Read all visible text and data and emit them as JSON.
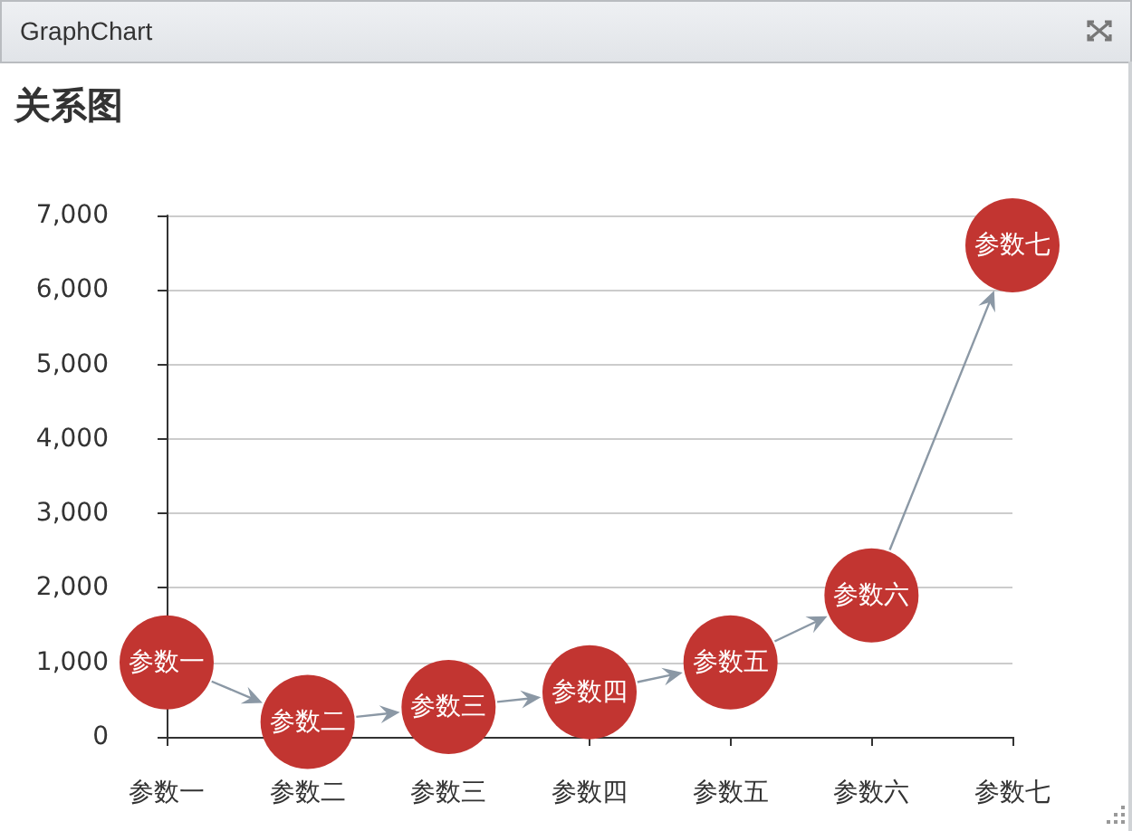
{
  "chart_data": {
    "type": "scatter",
    "title": "关系图",
    "annotations": [
      "GraphChart"
    ],
    "categories": [
      "参数一",
      "参数二",
      "参数三",
      "参数四",
      "参数五",
      "参数六",
      "参数七"
    ],
    "series": [
      {
        "color": "#c23531",
        "values": [
          1000,
          200,
          400,
          600,
          1000,
          1900,
          6600
        ],
        "value_labels": [
          "参数一",
          "参数二",
          "参数三",
          "参数四",
          "参数五",
          "参数六",
          "参数七"
        ]
      }
    ],
    "ylim": [
      0,
      7000
    ],
    "yticks": [
      0,
      {
        "value": 1000,
        "label": "1,000"
      },
      {
        "value": 2000,
        "label": "2,000"
      },
      {
        "value": 3000,
        "label": "3,000"
      },
      {
        "value": 4000,
        "label": "4,000"
      },
      {
        "value": 5000,
        "label": "5,000"
      },
      {
        "value": 6000,
        "label": "6,000"
      },
      {
        "value": 7000,
        "label": "7,000"
      }
    ],
    "grid": "y",
    "marker": "circle"
  }
}
